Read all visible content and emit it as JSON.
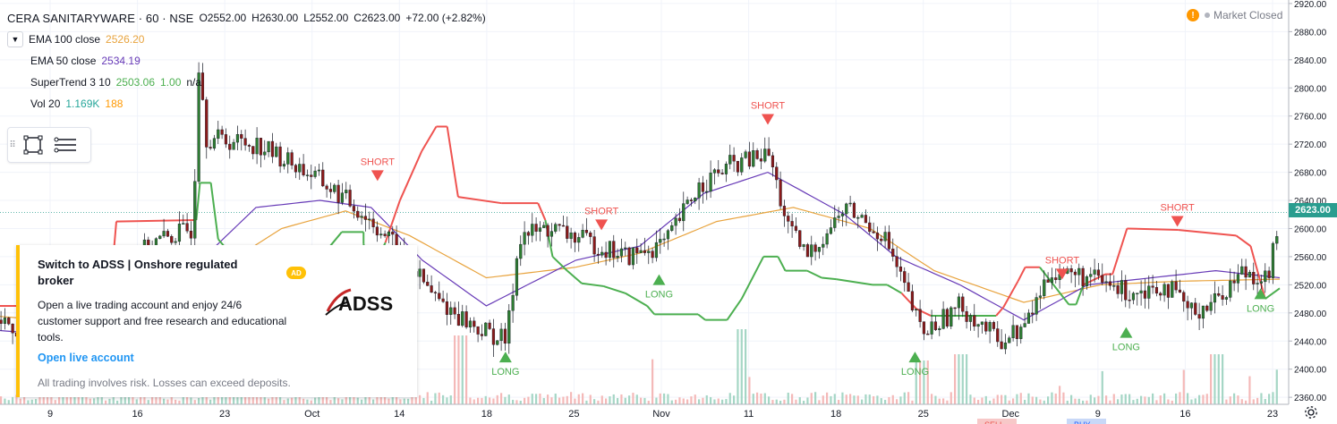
{
  "header": {
    "symbol_line": "CERA SANITARYWARE · 60 · NSE",
    "open": "O2552.00",
    "high": "H2630.00",
    "low": "L2552.00",
    "close": "C2623.00",
    "change": "+72.00 (+2.82%)",
    "collapse_icon": "chevron-down-icon"
  },
  "indicators": [
    {
      "label": "EMA 100 close",
      "value": "2526.20",
      "color": "#e8a33d"
    },
    {
      "label": "EMA 50 close",
      "value": "2534.19",
      "color": "#673ab7"
    },
    {
      "label": "SuperTrend 3 10",
      "value": "2503.06",
      "value2": "1.00",
      "value3": "n/a",
      "color": "#4caf50"
    },
    {
      "label": "Vol 20",
      "value": "1.169K",
      "value2": "188",
      "color": "#26a69a",
      "color2": "#ff9800"
    }
  ],
  "market_status": "Market Closed",
  "last_price_tag": "2623.00",
  "ad": {
    "title": "Switch to ADSS | Onshore regulated broker",
    "body": "Open a live trading account and enjoy 24/6 customer support and free research and educational tools.",
    "link": "Open live account",
    "disclaimer": "All trading involves risk. Losses can exceed deposits.",
    "badge": "AD",
    "logo_text": "ADSS"
  },
  "bottom_fragments": {
    "sell": "SELL",
    "buy": "BUY"
  },
  "chart_data": {
    "type": "candlestick",
    "y_axis": {
      "min": 2350,
      "max": 2925,
      "position": "right",
      "ticks": [
        2360,
        2400,
        2440,
        2480,
        2520,
        2560,
        2600,
        2640,
        2680,
        2720,
        2760,
        2800,
        2840,
        2880,
        2920
      ],
      "tick_labels": [
        "2360.00",
        "2400.00",
        "2440.00",
        "2480.00",
        "2520.00",
        "2560.00",
        "2600.00",
        "2640.00",
        "2680.00",
        "2720.00",
        "2760.00",
        "2800.00",
        "2840.00",
        "2880.00",
        "2920.00"
      ]
    },
    "x_axis": {
      "labels": [
        "9",
        "16",
        "23",
        "Oct",
        "14",
        "18",
        "25",
        "Nov",
        "11",
        "18",
        "25",
        "Dec",
        "9",
        "16",
        "23"
      ]
    },
    "grid": true,
    "last_price": 2623.0,
    "supertrend_line": [
      [
        0.0,
        2490
      ],
      [
        0.15,
        2490
      ],
      [
        0.16,
        2610
      ],
      [
        0.27,
        2612
      ],
      [
        0.275,
        2665
      ],
      [
        0.29,
        2665
      ],
      [
        0.3,
        2585
      ],
      [
        0.33,
        2548
      ],
      [
        0.37,
        2488
      ],
      [
        0.395,
        2488
      ],
      [
        0.4,
        2515
      ],
      [
        0.41,
        2550
      ],
      [
        0.45,
        2570
      ],
      [
        0.47,
        2595
      ],
      [
        0.5,
        2595
      ],
      [
        0.5,
        2578
      ],
      [
        0.51,
        2535
      ],
      [
        0.53,
        2580
      ],
      [
        0.55,
        2640
      ],
      [
        0.58,
        2710
      ],
      [
        0.6,
        2745
      ],
      [
        0.615,
        2745
      ],
      [
        0.63,
        2645
      ],
      [
        0.69,
        2636
      ],
      [
        0.74,
        2636
      ],
      [
        0.75,
        2612
      ],
      [
        0.76,
        2560
      ],
      [
        0.78,
        2540
      ],
      [
        0.8,
        2522
      ],
      [
        0.83,
        2518
      ],
      [
        0.86,
        2508
      ],
      [
        0.89,
        2490
      ],
      [
        0.9,
        2478
      ],
      [
        0.96,
        2478
      ],
      [
        0.97,
        2470
      ],
      [
        1.0,
        2470
      ],
      [
        1.02,
        2500
      ],
      [
        1.05,
        2560
      ],
      [
        1.07,
        2560
      ],
      [
        1.08,
        2540
      ],
      [
        1.11,
        2540
      ],
      [
        1.13,
        2530
      ],
      [
        1.15,
        2528
      ],
      [
        1.2,
        2520
      ],
      [
        1.22,
        2520
      ],
      [
        1.24,
        2508
      ],
      [
        1.26,
        2486
      ],
      [
        1.28,
        2476
      ],
      [
        1.37,
        2476
      ],
      [
        1.38,
        2488
      ],
      [
        1.4,
        2525
      ],
      [
        1.41,
        2545
      ],
      [
        1.43,
        2545
      ],
      [
        1.47,
        2492
      ],
      [
        1.48,
        2492
      ],
      [
        1.49,
        2520
      ],
      [
        1.52,
        2535
      ],
      [
        1.53,
        2535
      ],
      [
        1.55,
        2600
      ],
      [
        1.62,
        2598
      ],
      [
        1.7,
        2590
      ],
      [
        1.72,
        2575
      ],
      [
        1.74,
        2500
      ],
      [
        1.76,
        2515
      ]
    ],
    "signals": [
      {
        "type": "SHORT",
        "color": "#ef5350",
        "x": 0.295,
        "price": 2665
      },
      {
        "type": "LONG",
        "color": "#4caf50",
        "x": 0.395,
        "price": 2430
      },
      {
        "type": "SHORT",
        "color": "#ef5350",
        "x": 0.47,
        "price": 2595
      },
      {
        "type": "LONG",
        "color": "#4caf50",
        "x": 0.515,
        "price": 2540
      },
      {
        "type": "SHORT",
        "color": "#ef5350",
        "x": 0.6,
        "price": 2745
      },
      {
        "type": "LONG",
        "color": "#4caf50",
        "x": 0.715,
        "price": 2430
      },
      {
        "type": "SHORT",
        "color": "#ef5350",
        "x": 0.83,
        "price": 2525
      },
      {
        "type": "LONG",
        "color": "#4caf50",
        "x": 0.88,
        "price": 2465
      },
      {
        "type": "SHORT",
        "color": "#ef5350",
        "x": 0.92,
        "price": 2600
      },
      {
        "type": "LONG",
        "color": "#4caf50",
        "x": 0.985,
        "price": 2520
      }
    ],
    "ema50_anchors": [
      [
        0,
        2455
      ],
      [
        0.1,
        2440
      ],
      [
        0.16,
        2560
      ],
      [
        0.2,
        2630
      ],
      [
        0.25,
        2640
      ],
      [
        0.29,
        2630
      ],
      [
        0.33,
        2555
      ],
      [
        0.38,
        2490
      ],
      [
        0.45,
        2555
      ],
      [
        0.5,
        2575
      ],
      [
        0.55,
        2650
      ],
      [
        0.6,
        2680
      ],
      [
        0.66,
        2620
      ],
      [
        0.7,
        2560
      ],
      [
        0.75,
        2520
      ],
      [
        0.8,
        2470
      ],
      [
        0.85,
        2520
      ],
      [
        0.9,
        2530
      ],
      [
        0.95,
        2540
      ],
      [
        1.0,
        2530
      ]
    ],
    "ema100_anchors": [
      [
        0,
        2475
      ],
      [
        0.1,
        2460
      ],
      [
        0.16,
        2530
      ],
      [
        0.22,
        2600
      ],
      [
        0.27,
        2625
      ],
      [
        0.32,
        2590
      ],
      [
        0.38,
        2530
      ],
      [
        0.45,
        2545
      ],
      [
        0.5,
        2565
      ],
      [
        0.56,
        2610
      ],
      [
        0.62,
        2630
      ],
      [
        0.68,
        2600
      ],
      [
        0.73,
        2540
      ],
      [
        0.8,
        2495
      ],
      [
        0.86,
        2520
      ],
      [
        0.92,
        2525
      ],
      [
        1.0,
        2528
      ]
    ],
    "price_anchors": [
      [
        0,
        2470
      ],
      [
        0.03,
        2440
      ],
      [
        0.06,
        2500
      ],
      [
        0.09,
        2540
      ],
      [
        0.12,
        2580
      ],
      [
        0.15,
        2600
      ],
      [
        0.155,
        2860
      ],
      [
        0.16,
        2730
      ],
      [
        0.2,
        2720
      ],
      [
        0.24,
        2680
      ],
      [
        0.27,
        2640
      ],
      [
        0.29,
        2610
      ],
      [
        0.31,
        2570
      ],
      [
        0.34,
        2500
      ],
      [
        0.37,
        2460
      ],
      [
        0.395,
        2440
      ],
      [
        0.405,
        2590
      ],
      [
        0.43,
        2600
      ],
      [
        0.46,
        2580
      ],
      [
        0.49,
        2560
      ],
      [
        0.52,
        2580
      ],
      [
        0.545,
        2660
      ],
      [
        0.57,
        2690
      ],
      [
        0.6,
        2705
      ],
      [
        0.615,
        2600
      ],
      [
        0.63,
        2560
      ],
      [
        0.66,
        2630
      ],
      [
        0.69,
        2590
      ],
      [
        0.72,
        2450
      ],
      [
        0.75,
        2490
      ],
      [
        0.78,
        2440
      ],
      [
        0.8,
        2460
      ],
      [
        0.82,
        2540
      ],
      [
        0.85,
        2530
      ],
      [
        0.88,
        2510
      ],
      [
        0.91,
        2520
      ],
      [
        0.93,
        2480
      ],
      [
        0.95,
        2500
      ],
      [
        0.97,
        2540
      ],
      [
        0.99,
        2530
      ],
      [
        1.0,
        2623
      ]
    ],
    "volume_hint": {
      "spikes": [
        [
          0.36,
          0.55
        ],
        [
          0.58,
          0.6
        ],
        [
          0.72,
          0.35
        ],
        [
          0.75,
          0.4
        ],
        [
          0.95,
          0.4
        ]
      ]
    }
  }
}
